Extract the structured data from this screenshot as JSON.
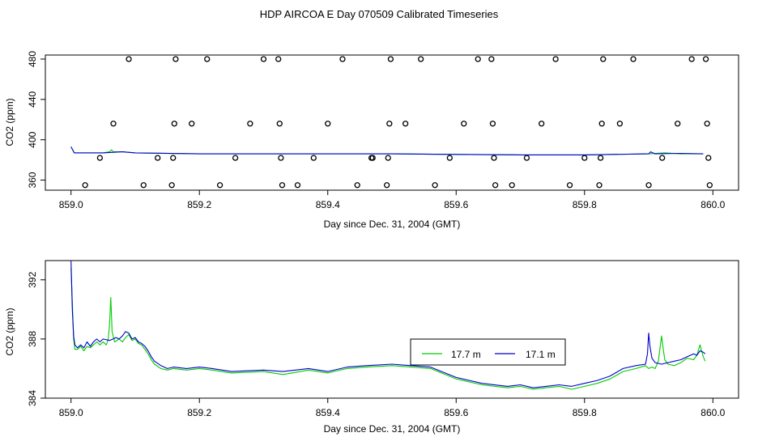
{
  "title": "HDP AIRCOA E  Day 070509  Calibrated Timeseries",
  "chart_data": [
    {
      "type": "line",
      "ylabel": "CO2 (ppm)",
      "xlabel": "Day since Dec. 31, 2004 (GMT)",
      "xlim": [
        858.96,
        860.04
      ],
      "ylim": [
        350,
        484
      ],
      "xticks": [
        "859.0",
        "859.2",
        "859.4",
        "859.6",
        "859.8",
        "860.0"
      ],
      "yticks": [
        "360",
        "400",
        "440",
        "480"
      ],
      "points": {
        "symbol": "open-circle",
        "x": [
          859.022,
          859.045,
          859.066,
          859.09,
          859.113,
          859.135,
          859.157,
          859.159,
          859.161,
          859.163,
          859.188,
          859.212,
          859.232,
          859.256,
          859.279,
          859.3,
          859.323,
          859.325,
          859.327,
          859.329,
          859.353,
          859.378,
          859.4,
          859.423,
          859.446,
          859.468,
          859.47,
          859.492,
          859.494,
          859.496,
          859.498,
          859.521,
          859.545,
          859.567,
          859.59,
          859.612,
          859.634,
          859.655,
          859.657,
          859.659,
          859.661,
          859.687,
          859.71,
          859.733,
          859.755,
          859.777,
          859.8,
          859.823,
          859.825,
          859.827,
          859.829,
          859.855,
          859.876,
          859.9,
          859.921,
          859.945,
          859.967,
          859.989,
          859.991,
          859.993,
          859.995
        ],
        "y": [
          355,
          382,
          416,
          480,
          355,
          382,
          355,
          382,
          416,
          480,
          416,
          480,
          355,
          382,
          416,
          480,
          480,
          416,
          382,
          355,
          355,
          382,
          416,
          480,
          355,
          382,
          382,
          355,
          382,
          416,
          480,
          416,
          480,
          355,
          382,
          416,
          480,
          480,
          416,
          382,
          355,
          355,
          382,
          416,
          480,
          355,
          382,
          355,
          382,
          416,
          480,
          416,
          480,
          355,
          382,
          416,
          480,
          480,
          416,
          382,
          355
        ]
      },
      "series": [
        {
          "color": "#00cc00",
          "x": [
            859.0,
            859.005,
            859.05,
            859.06,
            859.063,
            859.066,
            859.08,
            859.1,
            859.2,
            859.3,
            859.4,
            859.5,
            859.6,
            859.7,
            859.8,
            859.9,
            859.925,
            859.95,
            859.985
          ],
          "y": [
            393,
            387,
            387,
            388,
            390,
            388,
            388,
            387,
            386,
            386,
            386,
            386,
            385.5,
            385,
            385,
            386,
            387,
            386,
            386
          ]
        },
        {
          "color": "#0000cc",
          "x": [
            859.0,
            859.005,
            859.05,
            859.08,
            859.1,
            859.2,
            859.3,
            859.4,
            859.5,
            859.6,
            859.7,
            859.8,
            859.9,
            859.903,
            859.91,
            859.95,
            859.985
          ],
          "y": [
            393,
            387,
            387,
            388,
            387,
            386,
            386,
            386,
            386,
            385.5,
            385,
            385,
            386,
            388,
            386,
            386.5,
            386
          ]
        }
      ]
    },
    {
      "type": "line",
      "ylabel": "CO2 (ppm)",
      "xlabel": "Day since Dec. 31, 2004 (GMT)",
      "xlim": [
        858.96,
        860.04
      ],
      "ylim": [
        384,
        393.3
      ],
      "xticks": [
        "859.0",
        "859.2",
        "859.4",
        "859.6",
        "859.8",
        "860.0"
      ],
      "yticks": [
        "384",
        "388",
        "392"
      ],
      "legend": {
        "placement": "center-right"
      },
      "series": [
        {
          "name": "17.7 m",
          "color": "#00cc00",
          "x": [
            859.0,
            859.002,
            859.004,
            859.006,
            859.01,
            859.015,
            859.02,
            859.025,
            859.03,
            859.035,
            859.04,
            859.045,
            859.05,
            859.055,
            859.058,
            859.06,
            859.062,
            859.064,
            859.068,
            859.075,
            859.08,
            859.085,
            859.09,
            859.095,
            859.1,
            859.105,
            859.11,
            859.115,
            859.12,
            859.125,
            859.13,
            859.14,
            859.15,
            859.16,
            859.18,
            859.2,
            859.22,
            859.25,
            859.3,
            859.33,
            859.37,
            859.4,
            859.43,
            859.46,
            859.5,
            859.53,
            859.56,
            859.6,
            859.64,
            859.68,
            859.7,
            859.72,
            859.74,
            859.76,
            859.78,
            859.8,
            859.82,
            859.84,
            859.86,
            859.88,
            859.895,
            859.9,
            859.905,
            859.91,
            859.915,
            859.918,
            859.92,
            859.923,
            859.925,
            859.93,
            859.94,
            859.95,
            859.96,
            859.97,
            859.975,
            859.98,
            859.985,
            859.988
          ],
          "y": [
            392.8,
            390.5,
            388.0,
            387.3,
            387.3,
            387.5,
            387.2,
            387.5,
            387.4,
            387.6,
            387.8,
            387.6,
            387.8,
            387.6,
            388.0,
            389.0,
            390.8,
            388.5,
            387.8,
            388.0,
            387.8,
            388.1,
            388.3,
            387.9,
            388.0,
            387.7,
            387.6,
            387.3,
            387.0,
            386.6,
            386.3,
            386.0,
            385.9,
            386.0,
            385.9,
            386.0,
            385.9,
            385.7,
            385.8,
            385.6,
            385.9,
            385.7,
            386.0,
            386.1,
            386.2,
            386.1,
            386.0,
            385.3,
            384.9,
            384.7,
            384.8,
            384.6,
            384.7,
            384.8,
            384.6,
            384.8,
            385.0,
            385.3,
            385.8,
            386.0,
            386.2,
            386.0,
            386.1,
            386.0,
            386.5,
            387.5,
            388.2,
            387.2,
            386.6,
            386.3,
            386.2,
            386.4,
            386.7,
            386.6,
            386.9,
            387.6,
            386.8,
            386.5
          ]
        },
        {
          "name": "17.1 m",
          "color": "#0000cc",
          "x": [
            859.0,
            859.002,
            859.004,
            859.006,
            859.01,
            859.015,
            859.02,
            859.025,
            859.03,
            859.035,
            859.04,
            859.045,
            859.05,
            859.06,
            859.07,
            859.075,
            859.08,
            859.085,
            859.09,
            859.095,
            859.1,
            859.105,
            859.11,
            859.115,
            859.12,
            859.125,
            859.13,
            859.14,
            859.15,
            859.16,
            859.18,
            859.2,
            859.22,
            859.25,
            859.3,
            859.33,
            859.37,
            859.4,
            859.43,
            859.46,
            859.5,
            859.53,
            859.56,
            859.6,
            859.64,
            859.68,
            859.7,
            859.72,
            859.74,
            859.76,
            859.78,
            859.8,
            859.82,
            859.84,
            859.86,
            859.88,
            859.895,
            859.898,
            859.9,
            859.902,
            859.905,
            859.91,
            859.92,
            859.93,
            859.94,
            859.95,
            859.96,
            859.97,
            859.975,
            859.98,
            859.985,
            859.988
          ],
          "y": [
            393.3,
            390.0,
            388.2,
            387.6,
            387.4,
            387.6,
            387.4,
            387.8,
            387.5,
            387.8,
            388.0,
            387.8,
            388.0,
            387.9,
            388.1,
            388.0,
            388.2,
            388.5,
            388.4,
            388.0,
            388.1,
            387.8,
            387.7,
            387.5,
            387.2,
            386.8,
            386.5,
            386.2,
            386.0,
            386.1,
            386.0,
            386.1,
            386.0,
            385.8,
            385.9,
            385.8,
            386.0,
            385.8,
            386.1,
            386.2,
            386.3,
            386.2,
            386.1,
            385.4,
            385.0,
            384.8,
            384.9,
            384.7,
            384.8,
            384.9,
            384.8,
            385.0,
            385.2,
            385.5,
            386.0,
            386.2,
            386.3,
            387.0,
            388.4,
            387.5,
            386.7,
            386.4,
            386.3,
            386.4,
            386.5,
            386.6,
            386.8,
            387.0,
            386.9,
            387.2,
            387.1,
            387.0
          ]
        }
      ]
    }
  ]
}
